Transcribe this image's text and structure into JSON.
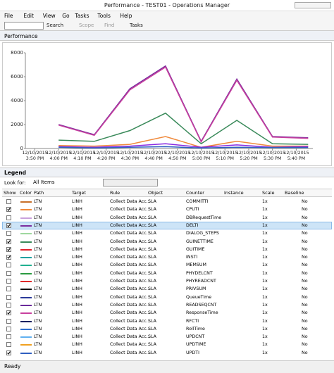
{
  "window": {
    "title": "Performance - TEST01 - Operations Manager",
    "menu": [
      "File",
      "Edit",
      "View",
      "Go",
      "Tasks",
      "Tools",
      "Help"
    ],
    "toolbar": [
      "Search",
      "Scope",
      "Find",
      "Tasks"
    ]
  },
  "section": "Performance",
  "chart_data": {
    "type": "line",
    "x": [
      "2015-12-10T16:00",
      "2015-12-10T16:15",
      "2015-12-10T16:30",
      "2015-12-10T16:45",
      "2015-12-10T17:00",
      "2015-12-10T17:15",
      "2015-12-10T17:30",
      "2015-12-10T17:45"
    ],
    "xlim": [
      "2015-12-10T15:46",
      "2015-12-10T17:47"
    ],
    "xticks": [
      {
        "value": "2015-12-10T15:50",
        "label": "12/10/2015 3:50 PM"
      },
      {
        "value": "2015-12-10T16:00",
        "label": "12/10/2015 4:00 PM"
      },
      {
        "value": "2015-12-10T16:10",
        "label": "12/10/2015 4:10 PM"
      },
      {
        "value": "2015-12-10T16:20",
        "label": "12/10/2015 4:20 PM"
      },
      {
        "value": "2015-12-10T16:30",
        "label": "12/10/2015 4:30 PM"
      },
      {
        "value": "2015-12-10T16:40",
        "label": "12/10/2015 4:40 PM"
      },
      {
        "value": "2015-12-10T16:50",
        "label": "12/10/2015 4:50 PM"
      },
      {
        "value": "2015-12-10T17:00",
        "label": "12/10/2015 5:00 PM"
      },
      {
        "value": "2015-12-10T17:10",
        "label": "12/10/2015 5:10 PM"
      },
      {
        "value": "2015-12-10T17:20",
        "label": "12/10/2015 5:20 PM"
      },
      {
        "value": "2015-12-10T17:30",
        "label": "12/10/2015 5:30 PM"
      },
      {
        "value": "2015-12-10T17:40",
        "label": "12/10/2015 5:40 PM"
      }
    ],
    "ylim": [
      0,
      8000
    ],
    "yticks": [
      0,
      2000,
      4000,
      6000,
      8000
    ],
    "grid": false,
    "series": [
      {
        "color": "#7b2c9e",
        "values": [
          2000,
          1150,
          5000,
          6900,
          600,
          5800,
          1000,
          900
        ]
      },
      {
        "color": "#c8409e",
        "values": [
          1950,
          1100,
          4900,
          6800,
          550,
          5700,
          950,
          850
        ]
      },
      {
        "color": "#3a8a5a",
        "values": [
          700,
          600,
          1500,
          2950,
          400,
          2350,
          400,
          350
        ]
      },
      {
        "color": "#f08a3c",
        "values": [
          250,
          200,
          350,
          1000,
          100,
          600,
          200,
          200
        ]
      },
      {
        "color": "#8a2be2",
        "values": [
          150,
          100,
          200,
          400,
          100,
          300,
          100,
          150
        ]
      },
      {
        "color": "#2f5fc0",
        "values": [
          100,
          50,
          100,
          150,
          50,
          100,
          80,
          80
        ]
      }
    ]
  },
  "legend": {
    "title": "Legend",
    "look_for": "Look for:",
    "filter": "All Items",
    "columns": [
      "Show",
      "Color",
      "Path",
      "Target",
      "Rule",
      "Object",
      "Counter",
      "Instance",
      "Scale",
      "Baseline"
    ],
    "rows": [
      {
        "show": false,
        "color": "#c8702a",
        "path": "LTN",
        "target": "LINH",
        "rule": "Collect Data Acc...",
        "object": "SLA",
        "counter": "COMMITTI",
        "scale": "1x",
        "baseline": "No"
      },
      {
        "show": true,
        "color": "#f08a3c",
        "path": "LTN",
        "target": "LINH",
        "rule": "Collect Data Acc...",
        "object": "SLA",
        "counter": "CPUTI",
        "scale": "1x",
        "baseline": "No"
      },
      {
        "show": false,
        "color": "#c9a0dc",
        "path": "LTN",
        "target": "LINH",
        "rule": "Collect Data Acc...",
        "object": "SLA",
        "counter": "DBRequestTime",
        "scale": "1x",
        "baseline": "No"
      },
      {
        "show": true,
        "color": "#7b2c9e",
        "path": "LTN",
        "target": "LINH",
        "rule": "Collect Data Acc...",
        "object": "SLA",
        "counter": "DELTI",
        "scale": "1x",
        "baseline": "No"
      },
      {
        "show": false,
        "color": "#9fd89f",
        "path": "LTN",
        "target": "LINH",
        "rule": "Collect Data Acc...",
        "object": "SLA",
        "counter": "DIALOG_STEPS",
        "scale": "1x",
        "baseline": "No"
      },
      {
        "show": true,
        "color": "#3a8a5a",
        "path": "LTN",
        "target": "LINH",
        "rule": "Collect Data Acc...",
        "object": "SLA",
        "counter": "GUINETTIME",
        "scale": "1x",
        "baseline": "No"
      },
      {
        "show": true,
        "color": "#e0202a",
        "path": "LTN",
        "target": "LINH",
        "rule": "Collect Data Acc...",
        "object": "SLA",
        "counter": "GUITIME",
        "scale": "1x",
        "baseline": "No"
      },
      {
        "show": true,
        "color": "#20a0a0",
        "path": "LTN",
        "target": "LINH",
        "rule": "Collect Data Acc...",
        "object": "SLA",
        "counter": "INSTI",
        "scale": "1x",
        "baseline": "No"
      },
      {
        "show": false,
        "color": "#20b090",
        "path": "LTN",
        "target": "LINH",
        "rule": "Collect Data Acc...",
        "object": "SLA",
        "counter": "MEMSUM",
        "scale": "1x",
        "baseline": "No"
      },
      {
        "show": false,
        "color": "#2a9a40",
        "path": "LTN",
        "target": "LINH",
        "rule": "Collect Data Acc...",
        "object": "SLA",
        "counter": "PHYDELCNT",
        "scale": "1x",
        "baseline": "No"
      },
      {
        "show": false,
        "color": "#e02a2a",
        "path": "LTN",
        "target": "LINH",
        "rule": "Collect Data Acc...",
        "object": "SLA",
        "counter": "PHYREADCNT",
        "scale": "1x",
        "baseline": "No"
      },
      {
        "show": false,
        "color": "#111111",
        "path": "LTN",
        "target": "LINH",
        "rule": "Collect Data Acc...",
        "object": "SLA",
        "counter": "PRIVSUM",
        "scale": "1x",
        "baseline": "No"
      },
      {
        "show": false,
        "color": "#2a3a9a",
        "path": "LTN",
        "target": "LINH",
        "rule": "Collect Data Acc...",
        "object": "SLA",
        "counter": "QueueTime",
        "scale": "1x",
        "baseline": "No"
      },
      {
        "show": false,
        "color": "#6a2a9a",
        "path": "LTN",
        "target": "LINH",
        "rule": "Collect Data Acc...",
        "object": "SLA",
        "counter": "READSEQCNT",
        "scale": "1x",
        "baseline": "No"
      },
      {
        "show": true,
        "color": "#c8409e",
        "path": "LTN",
        "target": "LINH",
        "rule": "Collect Data Acc...",
        "object": "SLA",
        "counter": "ResponseTime",
        "scale": "1x",
        "baseline": "No"
      },
      {
        "show": false,
        "color": "#1a2060",
        "path": "LTN",
        "target": "LINH",
        "rule": "Collect Data Acc...",
        "object": "SLA",
        "counter": "RFCTI",
        "scale": "1x",
        "baseline": "No"
      },
      {
        "show": false,
        "color": "#2f6fd0",
        "path": "LTN",
        "target": "LINH",
        "rule": "Collect Data Acc...",
        "object": "SLA",
        "counter": "RollTime",
        "scale": "1x",
        "baseline": "No"
      },
      {
        "show": false,
        "color": "#60b0f0",
        "path": "LTN",
        "target": "LINH",
        "rule": "Collect Data Acc...",
        "object": "SLA",
        "counter": "UPDCNT",
        "scale": "1x",
        "baseline": "No"
      },
      {
        "show": false,
        "color": "#f0a020",
        "path": "LTN",
        "target": "LINH",
        "rule": "Collect Data Acc...",
        "object": "SLA",
        "counter": "UPDTIME",
        "scale": "1x",
        "baseline": "No"
      },
      {
        "show": true,
        "color": "#2f5fc0",
        "path": "LTN",
        "target": "LINH",
        "rule": "Collect Data Acc...",
        "object": "SLA",
        "counter": "UPDTI",
        "scale": "1x",
        "baseline": "No"
      }
    ]
  },
  "status": "Ready"
}
